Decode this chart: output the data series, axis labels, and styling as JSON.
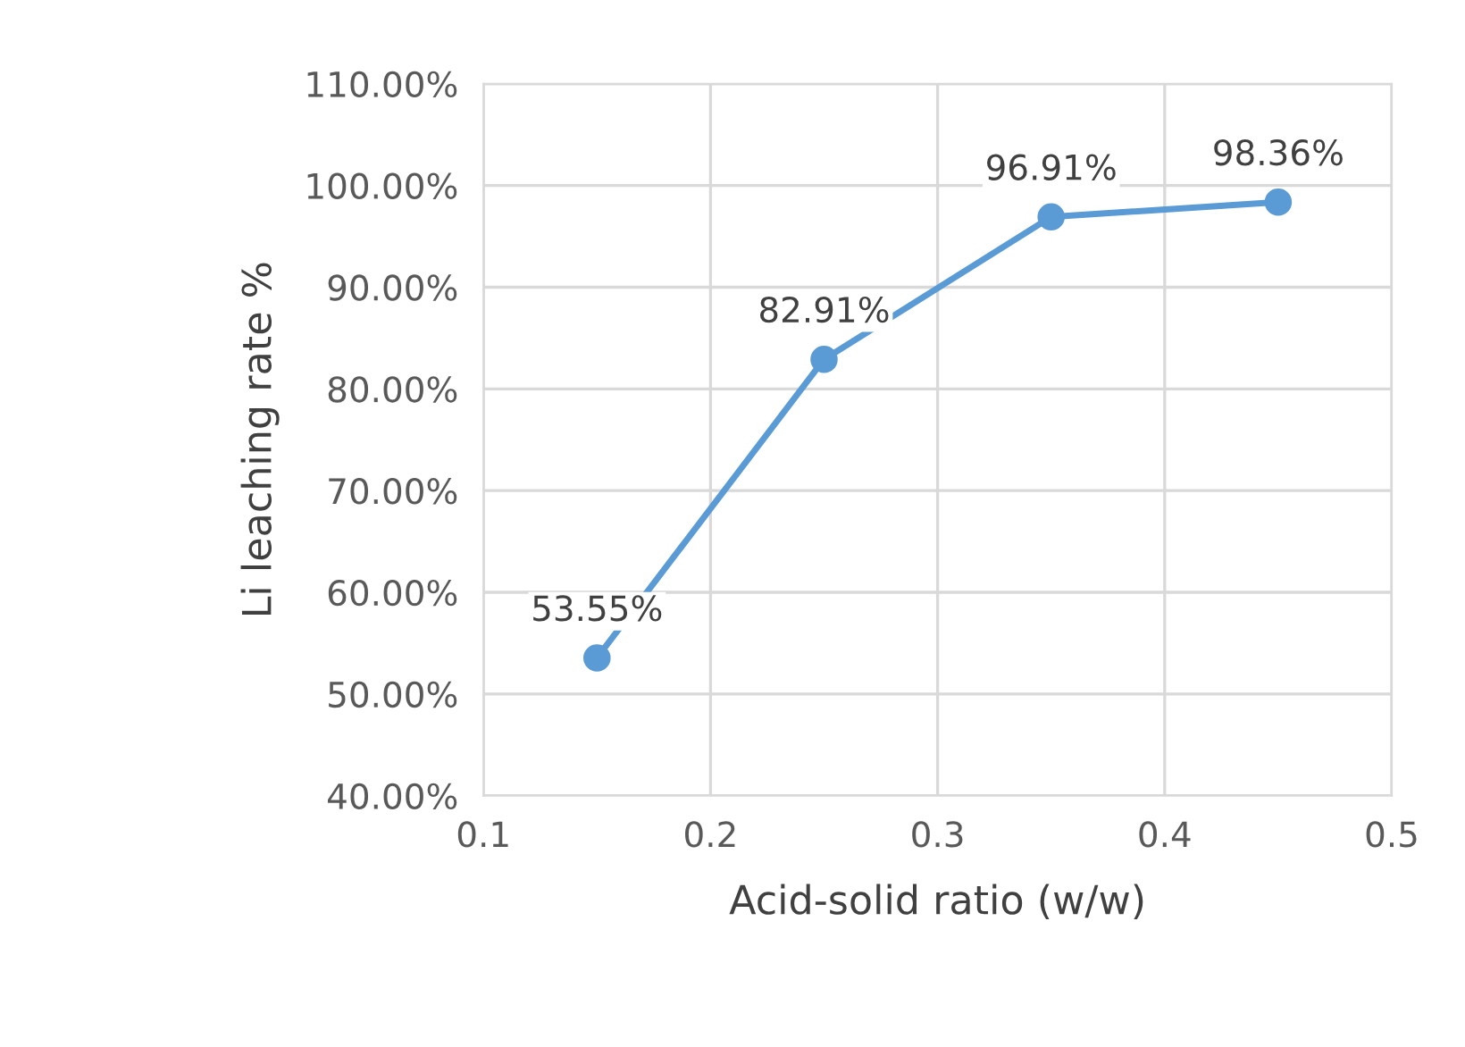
{
  "chart_data": {
    "type": "line",
    "xlabel": "Acid-solid ratio (w/w)",
    "ylabel": "Li leaching rate %",
    "x": [
      0.15,
      0.25,
      0.35,
      0.45
    ],
    "series": [
      {
        "color": "#5b9bd5",
        "values": [
          53.55,
          82.91,
          96.91,
          98.36
        ],
        "value_labels": [
          "53.55%",
          "82.91%",
          "96.91%",
          "98.36%"
        ]
      }
    ],
    "xlim": [
      0.1,
      0.5
    ],
    "xticks": [
      0.1,
      0.2,
      0.3,
      0.4,
      0.5
    ],
    "ylim": [
      40,
      110
    ],
    "yticks": [
      {
        "value": 40,
        "label": "40.00%"
      },
      {
        "value": 50,
        "label": "50.00%"
      },
      {
        "value": 60,
        "label": "60.00%"
      },
      {
        "value": 70,
        "label": "70.00%"
      },
      {
        "value": 80,
        "label": "80.00%"
      },
      {
        "value": 90,
        "label": "90.00%"
      },
      {
        "value": 100,
        "label": "100.00%"
      },
      {
        "value": 110,
        "label": "110.00%"
      }
    ],
    "grid": true,
    "marker": "circle",
    "line_style": "solid",
    "legend": false
  }
}
